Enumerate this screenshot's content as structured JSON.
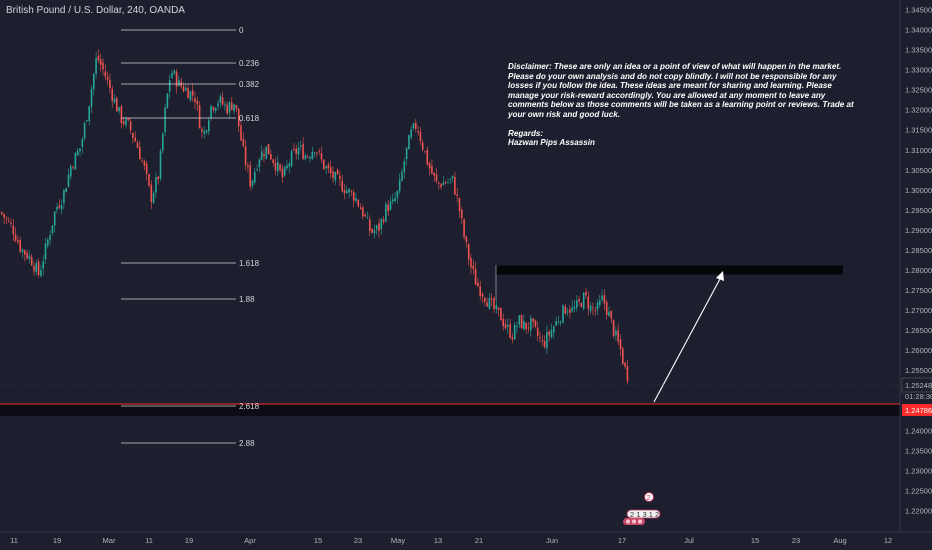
{
  "header": {
    "symbol_title": "British Pound / U.S. Dollar, 240, OANDA"
  },
  "note": {
    "disclaimer": "Disclaimer: These are only an idea or a point of view of what will happen in the market. Please do your own analysis and do not copy blindly. I will not be responsible for any losses if you follow the idea. These ideas are meant for sharing and learning. Please manage your risk-reward accordingly. You are allowed at any moment to leave any comments below as those comments will be taken as a learning point or reviews. Trade at your own risk and good luck.",
    "regards_label": "Regards:",
    "author": "Hazwan Pips Assassin"
  },
  "price_axis": {
    "ticks": [
      "1.34500",
      "1.34000",
      "1.33500",
      "1.33000",
      "1.32500",
      "1.32000",
      "1.31500",
      "1.31000",
      "1.30500",
      "1.30000",
      "1.29500",
      "1.29000",
      "1.28500",
      "1.28000",
      "1.27500",
      "1.27000",
      "1.26500",
      "1.26000",
      "1.25500",
      "1.24500",
      "1.24000",
      "1.23500",
      "1.23000",
      "1.22500",
      "1.22000"
    ],
    "last_price": "1.25248",
    "countdown": "01:28:30",
    "support_price": "1.24786"
  },
  "time_axis": {
    "ticks": [
      "11",
      "19",
      "Mar",
      "11",
      "19",
      "Apr",
      "15",
      "23",
      "May",
      "13",
      "21",
      "Jun",
      "17",
      "Jul",
      "15",
      "23",
      "Aug",
      "12"
    ]
  },
  "fibonacci": {
    "levels": [
      "0",
      "0.236",
      "0.382",
      "0.618",
      "1.618",
      "1.88",
      "2.618",
      "2.88"
    ]
  },
  "markers": {
    "earnings_badge": "2",
    "event_label": "2 1 3 1 2"
  },
  "colors": {
    "background": "#1e1f2e",
    "bull_candle": "#26a69a",
    "bear_candle": "#ef5350",
    "support_line": "#ff2b2b",
    "support_zone": "#0c0d14",
    "axis_text": "#b2b5be",
    "fib_line": "#d1d4dc"
  },
  "chart_data": {
    "type": "candlestick",
    "instrument": "British Pound / U.S. Dollar",
    "interval": "240",
    "ylim": [
      1.2175,
      1.3465
    ],
    "x_ticks": [
      "11",
      "19",
      "Mar",
      "11",
      "19",
      "Apr",
      "15",
      "23",
      "May",
      "13",
      "21",
      "Jun",
      "17",
      "Jul",
      "15",
      "23",
      "Aug",
      "12"
    ],
    "close_path": [
      {
        "x": 0,
        "close": 1.2945
      },
      {
        "x": 12,
        "close": 1.2905
      },
      {
        "x": 20,
        "close": 1.2855
      },
      {
        "x": 30,
        "close": 1.283
      },
      {
        "x": 38,
        "close": 1.279
      },
      {
        "x": 46,
        "close": 1.2865
      },
      {
        "x": 55,
        "close": 1.2955
      },
      {
        "x": 62,
        "close": 1.2985
      },
      {
        "x": 70,
        "close": 1.306
      },
      {
        "x": 80,
        "close": 1.311
      },
      {
        "x": 88,
        "close": 1.3215
      },
      {
        "x": 96,
        "close": 1.3335
      },
      {
        "x": 104,
        "close": 1.329
      },
      {
        "x": 112,
        "close": 1.3235
      },
      {
        "x": 120,
        "close": 1.318
      },
      {
        "x": 128,
        "close": 1.316
      },
      {
        "x": 136,
        "close": 1.3115
      },
      {
        "x": 144,
        "close": 1.305
      },
      {
        "x": 150,
        "close": 1.298
      },
      {
        "x": 158,
        "close": 1.304
      },
      {
        "x": 164,
        "close": 1.319
      },
      {
        "x": 170,
        "close": 1.33
      },
      {
        "x": 178,
        "close": 1.3265
      },
      {
        "x": 186,
        "close": 1.325
      },
      {
        "x": 194,
        "close": 1.3235
      },
      {
        "x": 202,
        "close": 1.313
      },
      {
        "x": 210,
        "close": 1.321
      },
      {
        "x": 218,
        "close": 1.3225
      },
      {
        "x": 226,
        "close": 1.3205
      },
      {
        "x": 234,
        "close": 1.322
      },
      {
        "x": 242,
        "close": 1.31
      },
      {
        "x": 250,
        "close": 1.3015
      },
      {
        "x": 258,
        "close": 1.3085
      },
      {
        "x": 266,
        "close": 1.3105
      },
      {
        "x": 274,
        "close": 1.307
      },
      {
        "x": 282,
        "close": 1.303
      },
      {
        "x": 290,
        "close": 1.308
      },
      {
        "x": 298,
        "close": 1.3105
      },
      {
        "x": 306,
        "close": 1.3085
      },
      {
        "x": 314,
        "close": 1.311
      },
      {
        "x": 322,
        "close": 1.3065
      },
      {
        "x": 330,
        "close": 1.304
      },
      {
        "x": 338,
        "close": 1.302
      },
      {
        "x": 346,
        "close": 1.3
      },
      {
        "x": 354,
        "close": 1.2985
      },
      {
        "x": 362,
        "close": 1.2945
      },
      {
        "x": 370,
        "close": 1.2895
      },
      {
        "x": 378,
        "close": 1.2905
      },
      {
        "x": 386,
        "close": 1.296
      },
      {
        "x": 392,
        "close": 1.2965
      },
      {
        "x": 398,
        "close": 1.3
      },
      {
        "x": 404,
        "close": 1.308
      },
      {
        "x": 410,
        "close": 1.314
      },
      {
        "x": 416,
        "close": 1.3165
      },
      {
        "x": 422,
        "close": 1.311
      },
      {
        "x": 428,
        "close": 1.306
      },
      {
        "x": 436,
        "close": 1.3015
      },
      {
        "x": 444,
        "close": 1.302
      },
      {
        "x": 452,
        "close": 1.3025
      },
      {
        "x": 458,
        "close": 1.296
      },
      {
        "x": 464,
        "close": 1.2875
      },
      {
        "x": 470,
        "close": 1.281
      },
      {
        "x": 476,
        "close": 1.2765
      },
      {
        "x": 482,
        "close": 1.2745
      },
      {
        "x": 488,
        "close": 1.272
      },
      {
        "x": 494,
        "close": 1.27
      },
      {
        "x": 500,
        "close": 1.2685
      },
      {
        "x": 506,
        "close": 1.2655
      },
      {
        "x": 512,
        "close": 1.264
      },
      {
        "x": 518,
        "close": 1.2675
      },
      {
        "x": 524,
        "close": 1.266
      },
      {
        "x": 530,
        "close": 1.2665
      },
      {
        "x": 536,
        "close": 1.264
      },
      {
        "x": 542,
        "close": 1.2615
      },
      {
        "x": 548,
        "close": 1.264
      },
      {
        "x": 554,
        "close": 1.2665
      },
      {
        "x": 560,
        "close": 1.269
      },
      {
        "x": 566,
        "close": 1.271
      },
      {
        "x": 572,
        "close": 1.27
      },
      {
        "x": 578,
        "close": 1.2715
      },
      {
        "x": 584,
        "close": 1.2735
      },
      {
        "x": 590,
        "close": 1.2705
      },
      {
        "x": 596,
        "close": 1.27
      },
      {
        "x": 602,
        "close": 1.273
      },
      {
        "x": 608,
        "close": 1.269
      },
      {
        "x": 614,
        "close": 1.264
      },
      {
        "x": 620,
        "close": 1.26
      },
      {
        "x": 624,
        "close": 1.2555
      },
      {
        "x": 628,
        "close": 1.253
      }
    ]
  }
}
